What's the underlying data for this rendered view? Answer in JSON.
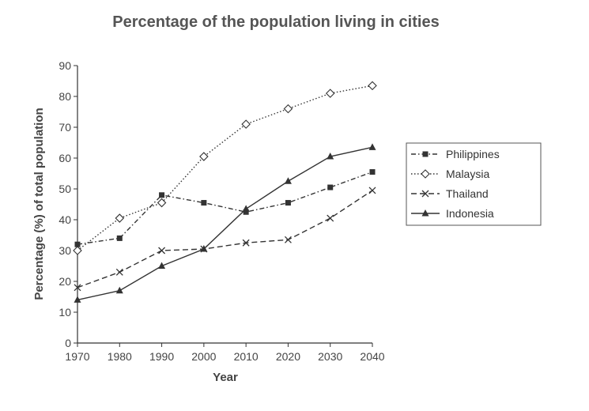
{
  "chart_data": {
    "type": "line",
    "title": "Percentage of the population living in cities",
    "xlabel": "Year",
    "ylabel": "Percentage (%) of total population",
    "x": [
      1970,
      1980,
      1990,
      2000,
      2010,
      2020,
      2030,
      2040
    ],
    "x_tick_labels": [
      "1970",
      "1980",
      "1990",
      "2000",
      "2010",
      "2020",
      "2030",
      "2040"
    ],
    "y_ticks": [
      0,
      10,
      20,
      30,
      40,
      50,
      60,
      70,
      80,
      90
    ],
    "y_tick_labels": [
      "0",
      "10",
      "20",
      "30",
      "40",
      "50",
      "60",
      "70",
      "80",
      "90"
    ],
    "xlim": [
      1970,
      2040
    ],
    "ylim": [
      0,
      90
    ],
    "grid": false,
    "legend_position": "right",
    "series": [
      {
        "name": "Philippines",
        "values": [
          32,
          34,
          48,
          45.5,
          42.5,
          45.5,
          50.5,
          55.5
        ],
        "color": "#333333",
        "dash": "dashdot",
        "marker": "square"
      },
      {
        "name": "Malaysia",
        "values": [
          30,
          40.5,
          45.5,
          60.5,
          71,
          76,
          81,
          83.5
        ],
        "color": "#333333",
        "dash": "dotted",
        "marker": "diamond"
      },
      {
        "name": "Thailand",
        "values": [
          18,
          23,
          30,
          30.5,
          32.5,
          33.5,
          40.5,
          49.5
        ],
        "color": "#333333",
        "dash": "dashed",
        "marker": "x"
      },
      {
        "name": "Indonesia",
        "values": [
          14,
          17,
          25,
          30.5,
          43.5,
          52.5,
          60.5,
          63.5
        ],
        "color": "#333333",
        "dash": "solid",
        "marker": "triangle"
      }
    ]
  }
}
